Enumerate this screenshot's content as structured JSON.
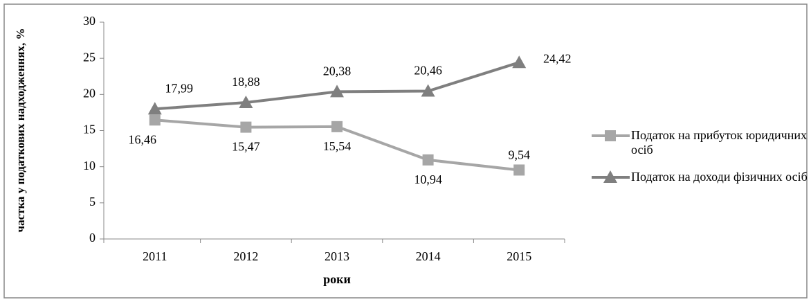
{
  "chart_data": {
    "type": "line",
    "y_label": "частка у податкових надходженнях, %",
    "x_label": "роки",
    "categories": [
      "2011",
      "2012",
      "2013",
      "2014",
      "2015"
    ],
    "series": [
      {
        "name": "Податок на прибуток юридичних осіб",
        "color": "#a6a6a6",
        "marker": "square",
        "values": [
          16.46,
          15.47,
          15.54,
          10.94,
          9.54
        ],
        "value_labels": [
          "16,46",
          "15,47",
          "15,54",
          "10,94",
          "9,54"
        ]
      },
      {
        "name": "Податок на доходи фізичних осіб",
        "color": "#7f7f7f",
        "marker": "triangle",
        "values": [
          17.99,
          18.88,
          20.38,
          20.46,
          24.42
        ],
        "value_labels": [
          "17,99",
          "18,88",
          "20,38",
          "20,46",
          "24,42"
        ]
      }
    ],
    "ylim": [
      0,
      30
    ],
    "yticks": [
      0,
      5,
      10,
      15,
      20,
      25,
      30
    ],
    "legend": "right"
  }
}
